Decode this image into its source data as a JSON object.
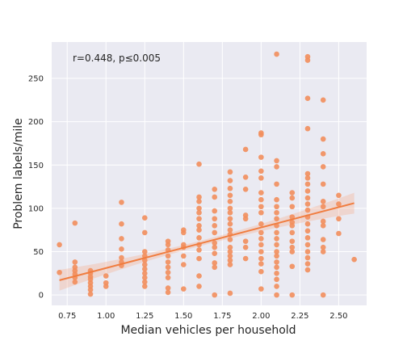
{
  "chart_data": {
    "type": "scatter",
    "title": "",
    "xlabel": "Median vehicles per household",
    "ylabel": "Problem labels/mile",
    "xlim": [
      0.65,
      2.68
    ],
    "ylim": [
      -12,
      292
    ],
    "x_ticks": [
      "0.75",
      "1.00",
      "1.25",
      "1.50",
      "1.75",
      "2.00",
      "2.25",
      "2.50"
    ],
    "y_ticks": [
      "0",
      "50",
      "100",
      "150",
      "200",
      "250"
    ],
    "annotation": "r=0.448, p≤0.005",
    "grid": true,
    "background": "#eaeaf2",
    "point_color": "#f28e5c",
    "line_color": "#f07d40",
    "band_color": "#f5b08e",
    "regression": {
      "x_start": 0.7,
      "y_start": 17,
      "x_end": 2.6,
      "y_end": 106
    },
    "points": [
      {
        "x": 0.7,
        "y": 58
      },
      {
        "x": 0.7,
        "y": 26
      },
      {
        "x": 0.8,
        "y": 83
      },
      {
        "x": 0.8,
        "y": 38
      },
      {
        "x": 0.8,
        "y": 32
      },
      {
        "x": 0.8,
        "y": 28
      },
      {
        "x": 0.8,
        "y": 24
      },
      {
        "x": 0.8,
        "y": 20
      },
      {
        "x": 0.8,
        "y": 15
      },
      {
        "x": 0.9,
        "y": 28
      },
      {
        "x": 0.9,
        "y": 25
      },
      {
        "x": 0.9,
        "y": 21
      },
      {
        "x": 0.9,
        "y": 18
      },
      {
        "x": 0.9,
        "y": 14
      },
      {
        "x": 0.9,
        "y": 10
      },
      {
        "x": 0.9,
        "y": 6
      },
      {
        "x": 0.9,
        "y": 1
      },
      {
        "x": 1.0,
        "y": 22
      },
      {
        "x": 1.0,
        "y": 14
      },
      {
        "x": 1.0,
        "y": 10
      },
      {
        "x": 1.1,
        "y": 107
      },
      {
        "x": 1.1,
        "y": 82
      },
      {
        "x": 1.1,
        "y": 65
      },
      {
        "x": 1.1,
        "y": 53
      },
      {
        "x": 1.1,
        "y": 43
      },
      {
        "x": 1.1,
        "y": 38
      },
      {
        "x": 1.1,
        "y": 34
      },
      {
        "x": 1.25,
        "y": 89
      },
      {
        "x": 1.25,
        "y": 72
      },
      {
        "x": 1.25,
        "y": 50
      },
      {
        "x": 1.25,
        "y": 45
      },
      {
        "x": 1.25,
        "y": 40
      },
      {
        "x": 1.25,
        "y": 35
      },
      {
        "x": 1.25,
        "y": 30
      },
      {
        "x": 1.25,
        "y": 25
      },
      {
        "x": 1.25,
        "y": 20
      },
      {
        "x": 1.25,
        "y": 15
      },
      {
        "x": 1.25,
        "y": 10
      },
      {
        "x": 1.4,
        "y": 62
      },
      {
        "x": 1.4,
        "y": 58
      },
      {
        "x": 1.4,
        "y": 52
      },
      {
        "x": 1.4,
        "y": 45
      },
      {
        "x": 1.4,
        "y": 38
      },
      {
        "x": 1.4,
        "y": 32
      },
      {
        "x": 1.4,
        "y": 26
      },
      {
        "x": 1.4,
        "y": 20
      },
      {
        "x": 1.4,
        "y": 8
      },
      {
        "x": 1.4,
        "y": 3
      },
      {
        "x": 1.5,
        "y": 75
      },
      {
        "x": 1.5,
        "y": 72
      },
      {
        "x": 1.5,
        "y": 58
      },
      {
        "x": 1.5,
        "y": 55
      },
      {
        "x": 1.5,
        "y": 45
      },
      {
        "x": 1.5,
        "y": 35
      },
      {
        "x": 1.5,
        "y": 7
      },
      {
        "x": 1.6,
        "y": 151
      },
      {
        "x": 1.6,
        "y": 113
      },
      {
        "x": 1.6,
        "y": 108
      },
      {
        "x": 1.6,
        "y": 100
      },
      {
        "x": 1.6,
        "y": 95
      },
      {
        "x": 1.6,
        "y": 88
      },
      {
        "x": 1.6,
        "y": 80
      },
      {
        "x": 1.6,
        "y": 75
      },
      {
        "x": 1.6,
        "y": 66
      },
      {
        "x": 1.6,
        "y": 58
      },
      {
        "x": 1.6,
        "y": 52
      },
      {
        "x": 1.6,
        "y": 42
      },
      {
        "x": 1.6,
        "y": 22
      },
      {
        "x": 1.6,
        "y": 10
      },
      {
        "x": 1.7,
        "y": 122
      },
      {
        "x": 1.7,
        "y": 113
      },
      {
        "x": 1.7,
        "y": 97
      },
      {
        "x": 1.7,
        "y": 88
      },
      {
        "x": 1.7,
        "y": 80
      },
      {
        "x": 1.7,
        "y": 72
      },
      {
        "x": 1.7,
        "y": 60
      },
      {
        "x": 1.7,
        "y": 55
      },
      {
        "x": 1.7,
        "y": 48
      },
      {
        "x": 1.7,
        "y": 37
      },
      {
        "x": 1.7,
        "y": 32
      },
      {
        "x": 1.7,
        "y": 0
      },
      {
        "x": 1.8,
        "y": 142
      },
      {
        "x": 1.8,
        "y": 132
      },
      {
        "x": 1.8,
        "y": 123
      },
      {
        "x": 1.8,
        "y": 115
      },
      {
        "x": 1.8,
        "y": 108
      },
      {
        "x": 1.8,
        "y": 100
      },
      {
        "x": 1.8,
        "y": 95
      },
      {
        "x": 1.8,
        "y": 88
      },
      {
        "x": 1.8,
        "y": 82
      },
      {
        "x": 1.8,
        "y": 75
      },
      {
        "x": 1.8,
        "y": 70
      },
      {
        "x": 1.8,
        "y": 64
      },
      {
        "x": 1.8,
        "y": 55
      },
      {
        "x": 1.8,
        "y": 50
      },
      {
        "x": 1.8,
        "y": 45
      },
      {
        "x": 1.8,
        "y": 40
      },
      {
        "x": 1.8,
        "y": 35
      },
      {
        "x": 1.8,
        "y": 2
      },
      {
        "x": 1.9,
        "y": 168
      },
      {
        "x": 1.9,
        "y": 136
      },
      {
        "x": 1.9,
        "y": 122
      },
      {
        "x": 1.9,
        "y": 92
      },
      {
        "x": 1.9,
        "y": 88
      },
      {
        "x": 1.9,
        "y": 62
      },
      {
        "x": 1.9,
        "y": 55
      },
      {
        "x": 1.9,
        "y": 42
      },
      {
        "x": 2.0,
        "y": 187
      },
      {
        "x": 2.0,
        "y": 185
      },
      {
        "x": 2.0,
        "y": 159
      },
      {
        "x": 2.0,
        "y": 143
      },
      {
        "x": 2.0,
        "y": 135
      },
      {
        "x": 2.0,
        "y": 118
      },
      {
        "x": 2.0,
        "y": 110
      },
      {
        "x": 2.0,
        "y": 102
      },
      {
        "x": 2.0,
        "y": 95
      },
      {
        "x": 2.0,
        "y": 82
      },
      {
        "x": 2.0,
        "y": 72
      },
      {
        "x": 2.0,
        "y": 65
      },
      {
        "x": 2.0,
        "y": 58
      },
      {
        "x": 2.0,
        "y": 50
      },
      {
        "x": 2.0,
        "y": 42
      },
      {
        "x": 2.0,
        "y": 36
      },
      {
        "x": 2.0,
        "y": 27
      },
      {
        "x": 2.0,
        "y": 7
      },
      {
        "x": 2.1,
        "y": 278
      },
      {
        "x": 2.1,
        "y": 155
      },
      {
        "x": 2.1,
        "y": 148
      },
      {
        "x": 2.1,
        "y": 128
      },
      {
        "x": 2.1,
        "y": 110
      },
      {
        "x": 2.1,
        "y": 102
      },
      {
        "x": 2.1,
        "y": 95
      },
      {
        "x": 2.1,
        "y": 88
      },
      {
        "x": 2.1,
        "y": 80
      },
      {
        "x": 2.1,
        "y": 72
      },
      {
        "x": 2.1,
        "y": 65
      },
      {
        "x": 2.1,
        "y": 58
      },
      {
        "x": 2.1,
        "y": 50
      },
      {
        "x": 2.1,
        "y": 45
      },
      {
        "x": 2.1,
        "y": 38
      },
      {
        "x": 2.1,
        "y": 32
      },
      {
        "x": 2.1,
        "y": 25
      },
      {
        "x": 2.1,
        "y": 18
      },
      {
        "x": 2.1,
        "y": 10
      },
      {
        "x": 2.1,
        "y": 0
      },
      {
        "x": 2.2,
        "y": 118
      },
      {
        "x": 2.2,
        "y": 112
      },
      {
        "x": 2.2,
        "y": 102
      },
      {
        "x": 2.2,
        "y": 90
      },
      {
        "x": 2.2,
        "y": 84
      },
      {
        "x": 2.2,
        "y": 80
      },
      {
        "x": 2.2,
        "y": 72
      },
      {
        "x": 2.2,
        "y": 62
      },
      {
        "x": 2.2,
        "y": 55
      },
      {
        "x": 2.2,
        "y": 50
      },
      {
        "x": 2.2,
        "y": 33
      },
      {
        "x": 2.2,
        "y": 0
      },
      {
        "x": 2.3,
        "y": 275
      },
      {
        "x": 2.3,
        "y": 271
      },
      {
        "x": 2.3,
        "y": 227
      },
      {
        "x": 2.3,
        "y": 192
      },
      {
        "x": 2.3,
        "y": 140
      },
      {
        "x": 2.3,
        "y": 135
      },
      {
        "x": 2.3,
        "y": 128
      },
      {
        "x": 2.3,
        "y": 120
      },
      {
        "x": 2.3,
        "y": 112
      },
      {
        "x": 2.3,
        "y": 105
      },
      {
        "x": 2.3,
        "y": 98
      },
      {
        "x": 2.3,
        "y": 90
      },
      {
        "x": 2.3,
        "y": 82
      },
      {
        "x": 2.3,
        "y": 74
      },
      {
        "x": 2.3,
        "y": 66
      },
      {
        "x": 2.3,
        "y": 58
      },
      {
        "x": 2.3,
        "y": 50
      },
      {
        "x": 2.3,
        "y": 43
      },
      {
        "x": 2.3,
        "y": 36
      },
      {
        "x": 2.3,
        "y": 29
      },
      {
        "x": 2.4,
        "y": 225
      },
      {
        "x": 2.4,
        "y": 180
      },
      {
        "x": 2.4,
        "y": 163
      },
      {
        "x": 2.4,
        "y": 148
      },
      {
        "x": 2.4,
        "y": 128
      },
      {
        "x": 2.4,
        "y": 108
      },
      {
        "x": 2.4,
        "y": 102
      },
      {
        "x": 2.4,
        "y": 85
      },
      {
        "x": 2.4,
        "y": 80
      },
      {
        "x": 2.4,
        "y": 64
      },
      {
        "x": 2.4,
        "y": 55
      },
      {
        "x": 2.4,
        "y": 50
      },
      {
        "x": 2.4,
        "y": 0
      },
      {
        "x": 2.5,
        "y": 115
      },
      {
        "x": 2.5,
        "y": 105
      },
      {
        "x": 2.5,
        "y": 88
      },
      {
        "x": 2.5,
        "y": 71
      },
      {
        "x": 2.6,
        "y": 41
      }
    ]
  }
}
